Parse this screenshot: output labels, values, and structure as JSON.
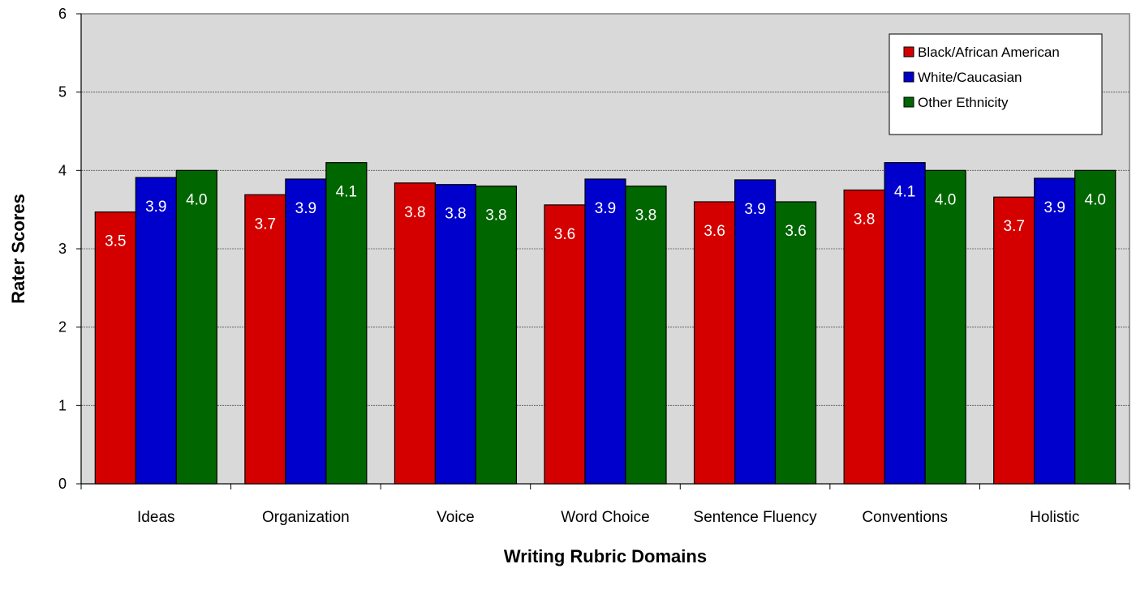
{
  "chart_data": {
    "type": "bar",
    "title": "",
    "xlabel": "Writing Rubric Domains",
    "ylabel": "Rater Scores",
    "ylim": [
      0,
      6
    ],
    "yticks": [
      "0",
      "1",
      "2",
      "3",
      "4",
      "5",
      "6"
    ],
    "grid": true,
    "legend_position": "top-right",
    "categories": [
      "Ideas",
      "Organization",
      "Voice",
      "Word Choice",
      "Sentence Fluency",
      "Conventions",
      "Holistic"
    ],
    "series": [
      {
        "name": "Black/African American",
        "color": "#d40000",
        "values": [
          3.47,
          3.69,
          3.84,
          3.56,
          3.6,
          3.75,
          3.66
        ],
        "labels": [
          "3.5",
          "3.7",
          "3.8",
          "3.6",
          "3.6",
          "3.8",
          "3.7"
        ]
      },
      {
        "name": "White/Caucasian",
        "color": "#0000cc",
        "values": [
          3.91,
          3.89,
          3.82,
          3.89,
          3.88,
          4.1,
          3.9
        ],
        "labels": [
          "3.9",
          "3.9",
          "3.8",
          "3.9",
          "3.9",
          "4.1",
          "3.9"
        ]
      },
      {
        "name": "Other Ethnicity",
        "color": "#006600",
        "values": [
          4.0,
          4.1,
          3.8,
          3.8,
          3.6,
          4.0,
          4.0
        ],
        "labels": [
          "4.0",
          "4.1",
          "3.8",
          "3.8",
          "3.6",
          "4.0",
          "4.0"
        ]
      }
    ]
  }
}
